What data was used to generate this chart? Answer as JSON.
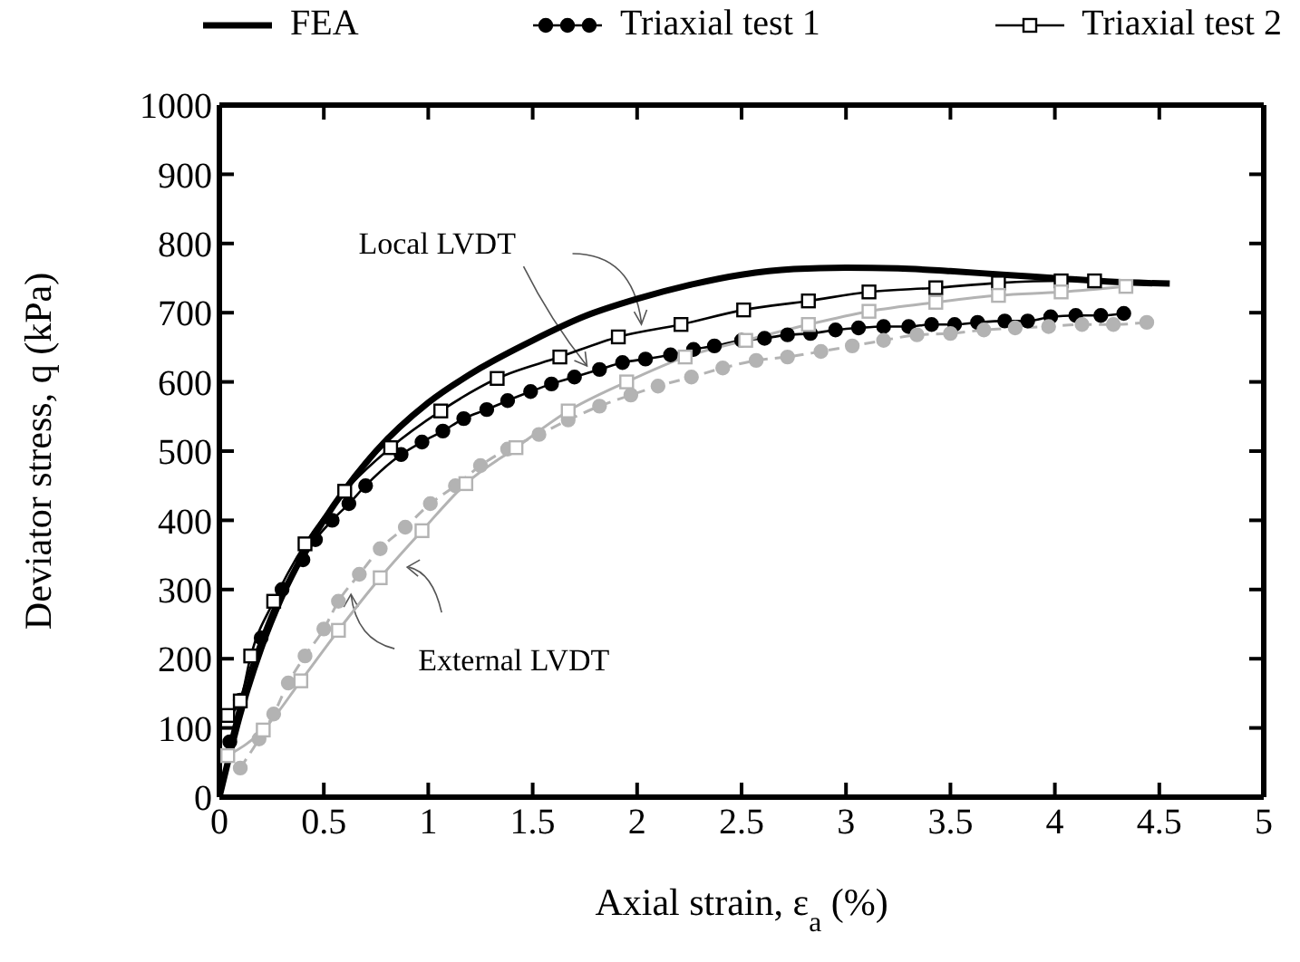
{
  "chart_data": {
    "type": "line",
    "xlabel": "Axial strain, ε$_{a}$ (%)",
    "ylabel": "Deviator stress, q (kPa)",
    "xlim": [
      0,
      5
    ],
    "xticks": [
      0,
      0.5,
      1,
      1.5,
      2,
      2.5,
      3,
      3.5,
      4,
      4.5,
      5
    ],
    "ylim": [
      0,
      1000
    ],
    "yticks": [
      0,
      100,
      200,
      300,
      400,
      500,
      600,
      700,
      800,
      900,
      1000
    ],
    "legend": "top",
    "annotations": [
      {
        "text": "Local LVDT",
        "x": 1.76,
        "y": 623
      },
      {
        "text": "External LVDT",
        "x": 0.63,
        "y": 293
      }
    ],
    "series": [
      {
        "name": "FEA",
        "color": "#000000",
        "marker": "none",
        "line_style": "solid",
        "x": [
          0,
          0.1,
          0.2,
          0.3,
          0.4,
          0.5,
          0.75,
          1,
          1.25,
          1.5,
          1.75,
          2,
          2.25,
          2.5,
          2.75,
          3,
          3.25,
          3.5,
          3.75,
          4,
          4.25,
          4.55
        ],
        "values": [
          0,
          120,
          215,
          290,
          350,
          400,
          500,
          570,
          620,
          660,
          695,
          720,
          740,
          755,
          763,
          765,
          764,
          760,
          755,
          750,
          745,
          742
        ]
      },
      {
        "name": "Triaxial test 1",
        "color": "#000000",
        "marker": "circle",
        "line_style": "solid",
        "x": [
          0.05,
          0.1,
          0.2,
          0.3,
          0.4,
          0.46,
          0.54,
          0.62,
          0.7,
          0.87,
          0.97,
          1.07,
          1.17,
          1.28,
          1.38,
          1.49,
          1.59,
          1.7,
          1.82,
          1.93,
          2.04,
          2.16,
          2.27,
          2.37,
          2.5,
          2.61,
          2.72,
          2.83,
          2.95,
          3.06,
          3.18,
          3.3,
          3.41,
          3.52,
          3.63,
          3.76,
          3.87,
          3.98,
          4.1,
          4.22,
          4.33
        ],
        "values": [
          80,
          140,
          230,
          300,
          343,
          372,
          400,
          424,
          450,
          495,
          513,
          529,
          547,
          560,
          573,
          586,
          597,
          607,
          618,
          628,
          633,
          639,
          647,
          652,
          660,
          663,
          668,
          670,
          675,
          678,
          680,
          680,
          683,
          683,
          686,
          688,
          688,
          694,
          696,
          696,
          699
        ]
      },
      {
        "name": "Triaxial test 2",
        "color": "#000000",
        "marker": "square",
        "line_style": "solid",
        "x": [
          0.04,
          0.1,
          0.15,
          0.26,
          0.41,
          0.6,
          0.82,
          1.06,
          1.33,
          1.63,
          1.91,
          2.21,
          2.51,
          2.82,
          3.11,
          3.43,
          3.73,
          4.03,
          4.19
        ],
        "values": [
          118,
          139,
          204,
          283,
          366,
          442,
          505,
          558,
          605,
          636,
          665,
          683,
          704,
          717,
          730,
          736,
          743,
          746,
          746
        ]
      },
      {
        "color": "#b3b3b3",
        "marker": "circle",
        "line_style": "dashed",
        "x": [
          0.1,
          0.19,
          0.26,
          0.33,
          0.41,
          0.5,
          0.57,
          0.67,
          0.77,
          0.89,
          1.01,
          1.13,
          1.25,
          1.38,
          1.53,
          1.67,
          1.82,
          1.97,
          2.1,
          2.26,
          2.41,
          2.57,
          2.72,
          2.88,
          3.03,
          3.18,
          3.34,
          3.5,
          3.66,
          3.81,
          3.97,
          4.13,
          4.28,
          4.44
        ],
        "values": [
          42,
          84,
          120,
          165,
          204,
          243,
          283,
          322,
          359,
          390,
          424,
          450,
          479,
          503,
          524,
          545,
          565,
          581,
          594,
          607,
          620,
          631,
          636,
          644,
          652,
          660,
          668,
          670,
          675,
          678,
          680,
          683,
          683,
          686
        ]
      },
      {
        "color": "#b3b3b3",
        "marker": "square",
        "line_style": "solid",
        "x": [
          0.04,
          0.21,
          0.39,
          0.57,
          0.77,
          0.97,
          1.18,
          1.42,
          1.67,
          1.95,
          2.23,
          2.52,
          2.82,
          3.11,
          3.43,
          3.73,
          4.03,
          4.34
        ],
        "values": [
          60,
          97,
          168,
          241,
          317,
          385,
          453,
          505,
          558,
          600,
          636,
          660,
          683,
          702,
          715,
          725,
          730,
          738
        ]
      }
    ]
  }
}
